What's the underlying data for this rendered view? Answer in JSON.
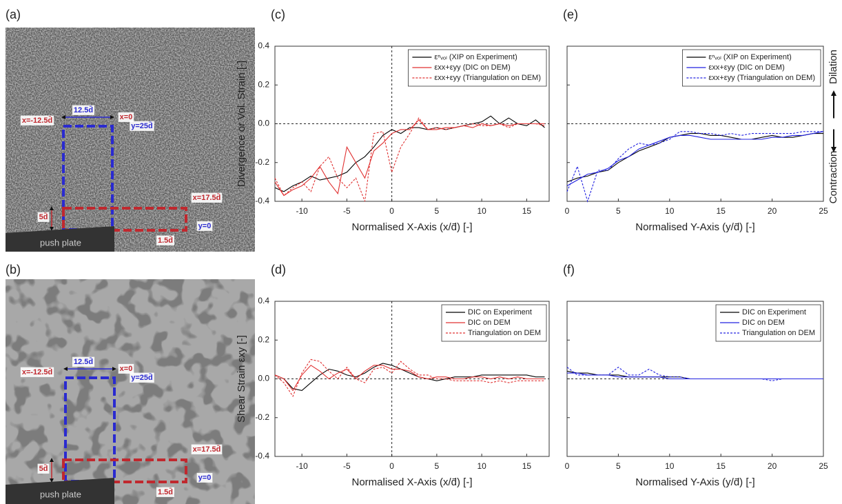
{
  "images": [
    {
      "label": "(a)",
      "style": "light",
      "annotations": [
        "x=-12.5d̄",
        "12.5d̄",
        "x=0",
        "y=25d̄",
        "x=17.5d̄",
        "5d̄",
        "y=0",
        "1.5d̄"
      ],
      "plate": "push plate"
    },
    {
      "label": "(b)",
      "style": "dark",
      "annotations": [
        "x=-12.5d̄",
        "12.5d̄",
        "x=0",
        "y=25d̄",
        "x=17.5d̄",
        "5d̄",
        "y=0",
        "1.5d̄"
      ],
      "plate": "push plate"
    }
  ],
  "chart_data": [
    {
      "type": "line",
      "panel_label": "(c)",
      "y_label": "Divergence or Vol. Strain [-]",
      "x_label": "Normalised X-Axis (x/d̄) [-]",
      "xlim": [
        -13,
        17.5
      ],
      "xticks": [
        -10,
        -5,
        0,
        5,
        10,
        15
      ],
      "ylim": [
        -0.4,
        0.4
      ],
      "yticks": [
        0.4,
        0.2,
        {
          "value": 0,
          "label": "0.0"
        },
        -0.2,
        -0.4
      ],
      "reference_x": 0,
      "reference_y": 0,
      "legend": "upper right",
      "x": [
        -13,
        -12,
        -11,
        -10,
        -9,
        -8,
        -7,
        -6,
        -5,
        -4,
        -3,
        -2,
        -1,
        0,
        1,
        2,
        3,
        4,
        5,
        6,
        7,
        8,
        9,
        10,
        11,
        12,
        13,
        14,
        15,
        16,
        17
      ],
      "series": [
        {
          "name": "εⁿᵥₒₗ (XIP on Experiment)",
          "color": "#000000",
          "dashed": false,
          "values": [
            -0.33,
            -0.35,
            -0.32,
            -0.3,
            -0.27,
            -0.29,
            -0.28,
            -0.27,
            -0.25,
            -0.2,
            -0.17,
            -0.12,
            -0.06,
            -0.03,
            -0.05,
            -0.02,
            -0.02,
            -0.03,
            -0.02,
            -0.03,
            -0.02,
            -0.01,
            0,
            0.01,
            0.04,
            0,
            0.03,
            0,
            -0.01,
            0.02,
            -0.02
          ]
        },
        {
          "name": "εxx+εyy (DIC on DEM)",
          "color": "#e03030",
          "dashed": false,
          "values": [
            -0.3,
            -0.37,
            -0.34,
            -0.32,
            -0.28,
            -0.22,
            -0.3,
            -0.36,
            -0.12,
            -0.2,
            -0.28,
            -0.14,
            -0.1,
            -0.05,
            -0.03,
            -0.03,
            0.02,
            -0.03,
            -0.03,
            -0.02,
            -0.02,
            -0.01,
            -0.02,
            0,
            -0.01,
            0,
            -0.01,
            0,
            0,
            0,
            0
          ]
        },
        {
          "name": "εxx+εyy (Triangulation on DEM)",
          "color": "#e03030",
          "dashed": true,
          "values": [
            -0.28,
            -0.37,
            -0.33,
            -0.3,
            -0.35,
            -0.22,
            -0.17,
            -0.28,
            -0.33,
            -0.28,
            -0.4,
            -0.05,
            -0.04,
            -0.25,
            -0.12,
            -0.05,
            0.03,
            -0.03,
            -0.02,
            -0.03,
            -0.02,
            -0.01,
            0,
            -0.01,
            -0.01,
            0,
            -0.02,
            0,
            0,
            0,
            -0.01
          ]
        }
      ]
    },
    {
      "type": "line",
      "panel_label": "(d)",
      "y_label": "Shear Strain εxy [-]",
      "x_label": "Normalised X-Axis (x/d̄) [-]",
      "xlim": [
        -13,
        17.5
      ],
      "xticks": [
        -10,
        -5,
        0,
        5,
        10,
        15
      ],
      "ylim": [
        -0.4,
        0.4
      ],
      "yticks": [
        0.4,
        0.2,
        {
          "value": 0,
          "label": "0.0"
        },
        -0.2,
        -0.4
      ],
      "reference_x": 0,
      "reference_y": 0,
      "legend": "upper right",
      "x": [
        -13,
        -12,
        -11,
        -10,
        -9,
        -8,
        -7,
        -6,
        -5,
        -4,
        -3,
        -2,
        -1,
        0,
        1,
        2,
        3,
        4,
        5,
        6,
        7,
        8,
        9,
        10,
        11,
        12,
        13,
        14,
        15,
        16,
        17
      ],
      "series": [
        {
          "name": "DIC on Experiment",
          "color": "#000000",
          "dashed": false,
          "values": [
            0.02,
            0,
            -0.05,
            -0.06,
            -0.02,
            0.02,
            0.05,
            0.04,
            0.02,
            0.01,
            0.03,
            0.06,
            0.08,
            0.07,
            0.05,
            0.03,
            0.01,
            0,
            -0.01,
            0,
            0.01,
            0.01,
            0.01,
            0.02,
            0.02,
            0.02,
            0.02,
            0.02,
            0.02,
            0.01,
            0.01
          ]
        },
        {
          "name": "DIC on DEM",
          "color": "#e03030",
          "dashed": false,
          "values": [
            0.02,
            0,
            -0.06,
            0.02,
            0.07,
            0.04,
            0,
            0.03,
            0.05,
            0,
            0.04,
            0.07,
            0.07,
            0.05,
            0.05,
            0.04,
            0.01,
            0,
            0.01,
            0.01,
            0,
            0,
            0.01,
            0.01,
            0,
            0.01,
            0,
            0.01,
            0,
            0,
            0
          ]
        },
        {
          "name": "Triangulation on DEM",
          "color": "#e03030",
          "dashed": true,
          "values": [
            0.02,
            -0.02,
            -0.09,
            0.03,
            0.1,
            0.09,
            0.04,
            0,
            0.06,
            0,
            -0.02,
            0.05,
            0.06,
            0.03,
            0.09,
            0.05,
            0.02,
            0.02,
            0,
            0,
            -0.01,
            -0.01,
            -0.01,
            -0.01,
            -0.02,
            -0.01,
            -0.02,
            -0.01,
            -0.01,
            -0.01,
            -0.01
          ]
        }
      ]
    },
    {
      "type": "line",
      "panel_label": "(e)",
      "x_label": "Normalised Y-Axis (y/d̄) [-]",
      "xlim": [
        0,
        25
      ],
      "xticks": [
        0,
        5,
        10,
        15,
        20,
        25
      ],
      "ylim": [
        -0.4,
        0.4
      ],
      "yticks": [
        0.4,
        0.2,
        {
          "value": 0,
          "label": "0.0"
        },
        -0.2,
        -0.4
      ],
      "reference_y": 0,
      "legend": "upper right",
      "side_labels": [
        "Dilation",
        "Contraction"
      ],
      "x": [
        0,
        1,
        2,
        3,
        4,
        5,
        6,
        7,
        8,
        9,
        10,
        11,
        12,
        13,
        14,
        15,
        16,
        17,
        18,
        19,
        20,
        21,
        22,
        23,
        24,
        25
      ],
      "series": [
        {
          "name": "εⁿᵥₒₗ (XIP on Experiment)",
          "color": "#000000",
          "dashed": false,
          "values": [
            -0.3,
            -0.28,
            -0.27,
            -0.25,
            -0.24,
            -0.2,
            -0.17,
            -0.14,
            -0.12,
            -0.1,
            -0.07,
            -0.06,
            -0.05,
            -0.05,
            -0.06,
            -0.06,
            -0.07,
            -0.08,
            -0.08,
            -0.07,
            -0.06,
            -0.07,
            -0.07,
            -0.06,
            -0.05,
            -0.05
          ]
        },
        {
          "name": "εxx+εyy (DIC on DEM)",
          "color": "#2020e0",
          "dashed": false,
          "values": [
            -0.32,
            -0.29,
            -0.26,
            -0.25,
            -0.23,
            -0.19,
            -0.17,
            -0.13,
            -0.11,
            -0.09,
            -0.07,
            -0.06,
            -0.06,
            -0.07,
            -0.08,
            -0.08,
            -0.08,
            -0.08,
            -0.08,
            -0.08,
            -0.07,
            -0.07,
            -0.06,
            -0.06,
            -0.05,
            -0.04
          ]
        },
        {
          "name": "εxx+εyy (Triangulation on DEM)",
          "color": "#2020e0",
          "dashed": true,
          "values": [
            -0.35,
            -0.22,
            -0.4,
            -0.24,
            -0.24,
            -0.18,
            -0.13,
            -0.1,
            -0.11,
            -0.1,
            -0.08,
            -0.04,
            -0.04,
            -0.05,
            -0.05,
            -0.06,
            -0.05,
            -0.06,
            -0.05,
            -0.05,
            -0.05,
            -0.05,
            -0.05,
            -0.04,
            -0.04,
            -0.04
          ]
        }
      ]
    },
    {
      "type": "line",
      "panel_label": "(f)",
      "x_label": "Normalised Y-Axis (y/d̄) [-]",
      "xlim": [
        0,
        25
      ],
      "xticks": [
        0,
        5,
        10,
        15,
        20,
        25
      ],
      "ylim": [
        -0.4,
        0.4
      ],
      "yticks": [
        0.4,
        0.2,
        {
          "value": 0,
          "label": "0.0"
        },
        -0.2,
        -0.4
      ],
      "reference_y": 0,
      "legend": "upper right",
      "x": [
        0,
        1,
        2,
        3,
        4,
        5,
        6,
        7,
        8,
        9,
        10,
        11,
        12,
        13,
        14,
        15,
        16,
        17,
        18,
        19,
        20,
        21,
        22,
        23,
        24,
        25
      ],
      "series": [
        {
          "name": "DIC on Experiment",
          "color": "#000000",
          "dashed": false,
          "values": [
            0.04,
            0.03,
            0.03,
            0.02,
            0.02,
            0.02,
            0.01,
            0.01,
            0.01,
            0.01,
            0.01,
            0.01,
            0,
            0,
            0,
            0,
            0,
            0,
            0,
            0,
            0,
            0,
            0,
            0,
            0,
            0
          ]
        },
        {
          "name": "DIC on DEM",
          "color": "#2020e0",
          "dashed": false,
          "values": [
            0.03,
            0.03,
            0.02,
            0.02,
            0.02,
            0.01,
            0.01,
            0.01,
            0.01,
            0.01,
            0,
            0,
            0,
            0,
            0,
            0,
            0,
            0,
            0,
            0,
            0,
            0,
            0,
            0,
            0,
            0
          ]
        },
        {
          "name": "Triangulation on DEM",
          "color": "#2020e0",
          "dashed": true,
          "values": [
            0.06,
            0.02,
            0.02,
            0.02,
            0.02,
            0.06,
            0.02,
            0.02,
            0.05,
            0.02,
            0.01,
            0.01,
            0,
            0,
            0,
            0,
            0,
            0,
            0,
            0,
            -0.01,
            0,
            0,
            0,
            0,
            0
          ]
        }
      ]
    }
  ]
}
